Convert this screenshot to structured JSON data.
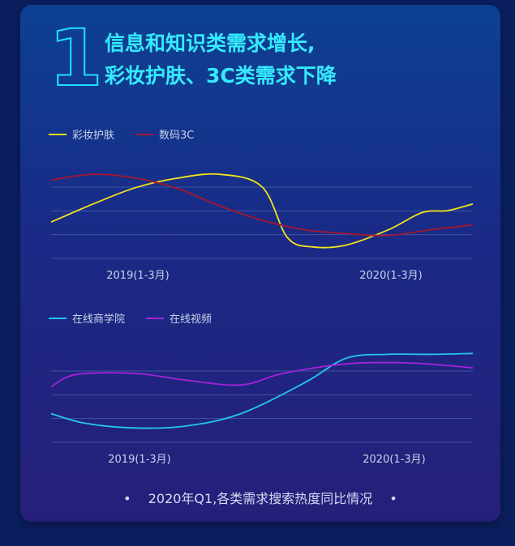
{
  "header": {
    "number": "1",
    "title_line1": "信息和知识类需求增长,",
    "title_line2": "彩妆护肤、3C类需求下降"
  },
  "caption": {
    "bullet_left": "•",
    "text": "2020年Q1,各类需求搜索热度同比情况",
    "bullet_right": "•"
  },
  "chart_data": [
    {
      "type": "line",
      "x_tick_labels": [
        "2019(1-3月)",
        "2020(1-3月)"
      ],
      "grid": true,
      "legend_position": "top-left",
      "series": [
        {
          "name": "彩妆护肤",
          "color": "#f2e31b",
          "values": [
            [
              0,
              0.38
            ],
            [
              0.1,
              0.57
            ],
            [
              0.2,
              0.74
            ],
            [
              0.3,
              0.84
            ],
            [
              0.4,
              0.88
            ],
            [
              0.5,
              0.75
            ],
            [
              0.56,
              0.22
            ],
            [
              0.62,
              0.12
            ],
            [
              0.7,
              0.14
            ],
            [
              0.8,
              0.3
            ],
            [
              0.88,
              0.48
            ],
            [
              0.94,
              0.5
            ],
            [
              1.0,
              0.57
            ]
          ]
        },
        {
          "name": "数码3C",
          "color": "#a3172f",
          "values": [
            [
              0,
              0.82
            ],
            [
              0.1,
              0.88
            ],
            [
              0.2,
              0.84
            ],
            [
              0.3,
              0.73
            ],
            [
              0.4,
              0.55
            ],
            [
              0.5,
              0.4
            ],
            [
              0.6,
              0.3
            ],
            [
              0.7,
              0.26
            ],
            [
              0.8,
              0.24
            ],
            [
              0.9,
              0.3
            ],
            [
              1.0,
              0.35
            ]
          ]
        }
      ]
    },
    {
      "type": "line",
      "x_tick_labels": [
        "2019(1-3月)",
        "2020(1-3月)"
      ],
      "grid": true,
      "legend_position": "top-left",
      "series": [
        {
          "name": "在线商学院",
          "color": "#22c8ea",
          "values": [
            [
              0,
              0.3
            ],
            [
              0.08,
              0.2
            ],
            [
              0.2,
              0.15
            ],
            [
              0.32,
              0.17
            ],
            [
              0.45,
              0.3
            ],
            [
              0.6,
              0.62
            ],
            [
              0.7,
              0.88
            ],
            [
              0.8,
              0.92
            ],
            [
              0.9,
              0.92
            ],
            [
              1.0,
              0.93
            ]
          ]
        },
        {
          "name": "在线视频",
          "color": "#a123d6",
          "values": [
            [
              0,
              0.58
            ],
            [
              0.06,
              0.71
            ],
            [
              0.2,
              0.72
            ],
            [
              0.32,
              0.65
            ],
            [
              0.45,
              0.6
            ],
            [
              0.55,
              0.72
            ],
            [
              0.7,
              0.82
            ],
            [
              0.85,
              0.83
            ],
            [
              1.0,
              0.78
            ]
          ]
        }
      ]
    }
  ]
}
